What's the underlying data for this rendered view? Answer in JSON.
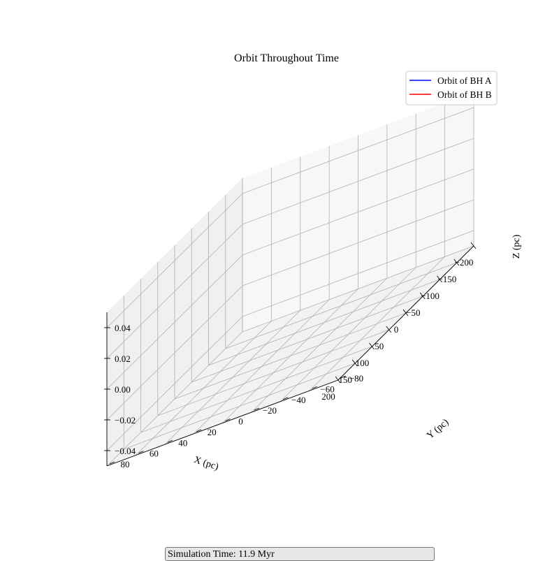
{
  "chart_data": {
    "type": "line",
    "projection": "3d",
    "title": "Orbit Throughout Time",
    "xlabel": "X (pc)",
    "ylabel": "Y (pc)",
    "zlabel": "Z (pc)",
    "xlim": [
      -200,
      200
    ],
    "ylim": [
      -80,
      80
    ],
    "zlim": [
      -0.05,
      0.05
    ],
    "x_ticks": [
      "−200",
      "−150",
      "−100",
      "−50",
      "0",
      "50",
      "100",
      "150",
      "200"
    ],
    "y_ticks": [
      "−80",
      "−60",
      "−40",
      "−20",
      "0",
      "20",
      "40",
      "60",
      "80"
    ],
    "z_ticks": [
      "−0.04",
      "−0.02",
      "0.00",
      "0.02",
      "0.04"
    ],
    "grid": true,
    "legend_position": "top-right",
    "series": [
      {
        "name": "Orbit of BH A",
        "color": "#0000ff",
        "points": []
      },
      {
        "name": "Orbit of BH B",
        "color": "#ff0000",
        "points": []
      }
    ]
  },
  "status": {
    "text": "Simulation Time: 11.9 Myr"
  }
}
